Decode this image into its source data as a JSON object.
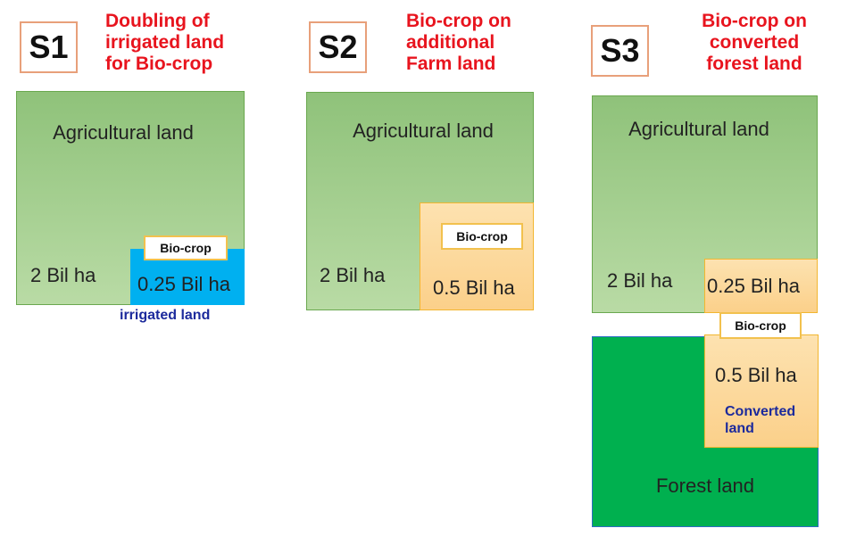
{
  "s1": {
    "badge": "S1",
    "title": "Doubling of\nirrigated land\nfor Bio-crop",
    "agri_label": "Agricultural land",
    "agri_value": "2 Bil ha",
    "biocrop_label": "Bio-crop",
    "biocrop_value": "0.25 Bil ha",
    "irrigated_label": "irrigated land"
  },
  "s2": {
    "badge": "S2",
    "title": "Bio-crop on\nadditional\nFarm land",
    "agri_label": "Agricultural land",
    "agri_value": "2 Bil ha",
    "biocrop_label": "Bio-crop",
    "biocrop_value": "0.5 Bil ha"
  },
  "s3": {
    "badge": "S3",
    "title": "Bio-crop on\nconverted\nforest land",
    "agri_label": "Agricultural land",
    "agri_value": "2 Bil ha",
    "top_biocrop_value": "0.25 Bil ha",
    "biocrop_label": "Bio-crop",
    "converted_value": "0.5 Bil ha",
    "converted_label": "Converted\nland",
    "forest_label": "Forest land"
  },
  "colors": {
    "title_red": "#e8141e",
    "agri_green": "#a9d18e",
    "irrigated_blue": "#00b0f0",
    "biocrop_orange": "#fbd08a",
    "forest_green": "#00b04f",
    "label_blue": "#1c2a9c"
  }
}
